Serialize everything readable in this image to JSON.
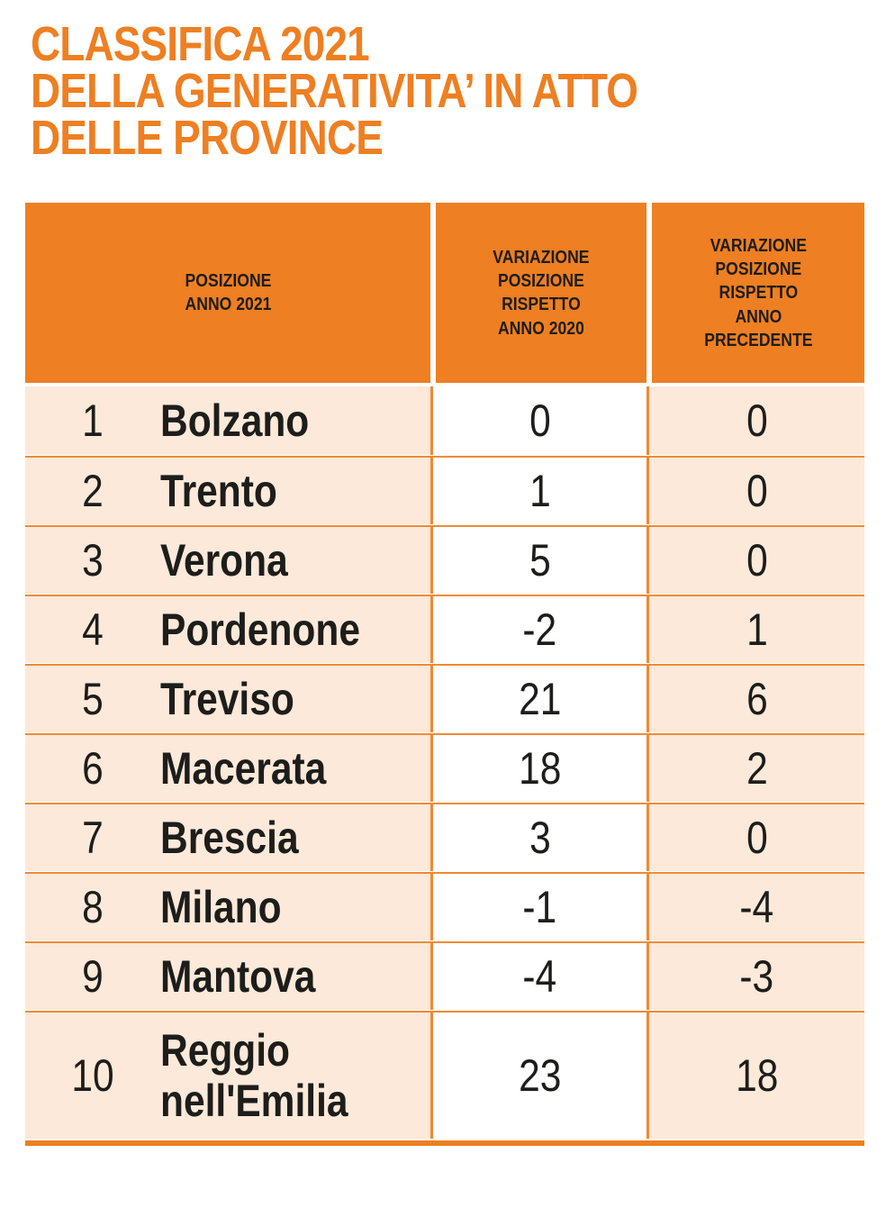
{
  "title": "CLASSIFICA 2021\nDELLA GENERATIVITA’ IN ATTO\nDELLE PROVINCE",
  "colors": {
    "accent_orange": "#ee7f22",
    "separator_orange": "#ef8a35",
    "row_peach": "#fce9d9",
    "cell_white": "#ffffff",
    "text_dark": "#1d1d1b"
  },
  "table": {
    "headers": [
      {
        "label": "POSIZIONE\nANNO 2021"
      },
      {
        "label": "VARIAZIONE\nPOSIZIONE\nRISPETTO\nANNO 2020"
      },
      {
        "label": "VARIAZIONE\nPOSIZIONE\nRISPETTO\nANNO\nPRECEDENTE"
      }
    ],
    "rows": [
      {
        "rank": "1",
        "province": "Bolzano",
        "var_2020": "0",
        "var_prev": "0"
      },
      {
        "rank": "2",
        "province": "Trento",
        "var_2020": "1",
        "var_prev": "0"
      },
      {
        "rank": "3",
        "province": "Verona",
        "var_2020": "5",
        "var_prev": "0"
      },
      {
        "rank": "4",
        "province": "Pordenone",
        "var_2020": "-2",
        "var_prev": "1"
      },
      {
        "rank": "5",
        "province": "Treviso",
        "var_2020": "21",
        "var_prev": "6"
      },
      {
        "rank": "6",
        "province": "Macerata",
        "var_2020": "18",
        "var_prev": "2"
      },
      {
        "rank": "7",
        "province": "Brescia",
        "var_2020": "3",
        "var_prev": "0"
      },
      {
        "rank": "8",
        "province": "Milano",
        "var_2020": "-1",
        "var_prev": "-4"
      },
      {
        "rank": "9",
        "province": "Mantova",
        "var_2020": "-4",
        "var_prev": "-3"
      },
      {
        "rank": "10",
        "province": "Reggio nell'Emilia",
        "var_2020": "23",
        "var_prev": "18"
      }
    ]
  },
  "chart_data": {
    "type": "table",
    "title": "CLASSIFICA 2021 DELLA GENERATIVITA’ IN ATTO DELLE PROVINCE",
    "columns": [
      "POSIZIONE ANNO 2021",
      "VARIAZIONE POSIZIONE RISPETTO ANNO 2020",
      "VARIAZIONE POSIZIONE RISPETTO ANNO PRECEDENTE"
    ],
    "rows": [
      [
        1,
        "Bolzano",
        0,
        0
      ],
      [
        2,
        "Trento",
        1,
        0
      ],
      [
        3,
        "Verona",
        5,
        0
      ],
      [
        4,
        "Pordenone",
        -2,
        1
      ],
      [
        5,
        "Treviso",
        21,
        6
      ],
      [
        6,
        "Macerata",
        18,
        2
      ],
      [
        7,
        "Brescia",
        3,
        0
      ],
      [
        8,
        "Milano",
        -1,
        -4
      ],
      [
        9,
        "Mantova",
        -4,
        -3
      ],
      [
        10,
        "Reggio nell'Emilia",
        23,
        18
      ]
    ]
  }
}
